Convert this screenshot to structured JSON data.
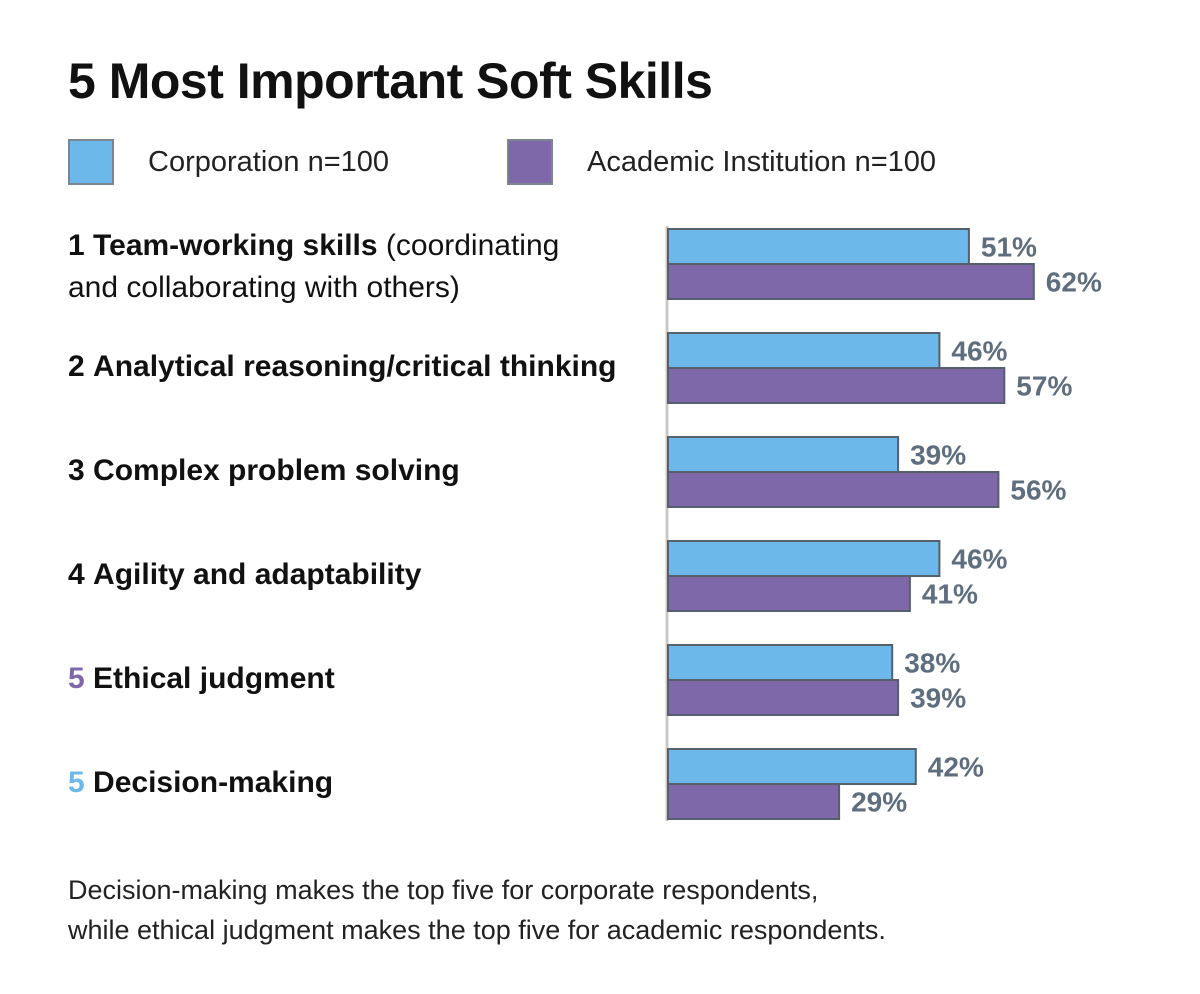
{
  "title": "5 Most Important Soft Skills",
  "colors": {
    "corporation": "#6cb8ea",
    "academic": "#7e68aa",
    "value_label": "#5f6e7e",
    "bar_border": "#56606c",
    "axis": "#c8c8c8",
    "rank_academic": "#7e68aa",
    "rank_corporate": "#6cb8ea"
  },
  "legend": {
    "corporation": "Corporation n=100",
    "academic": "Academic Institution n=100"
  },
  "rows": [
    {
      "rank": "1",
      "name": "Team-working skills",
      "detail": " (coordinating",
      "detail2": "and collaborating with others)"
    },
    {
      "rank": "2",
      "name": "Analytical reasoning/critical thinking"
    },
    {
      "rank": "3",
      "name": "Complex problem solving"
    },
    {
      "rank": "4",
      "name": "Agility and adaptability"
    },
    {
      "rank": "5",
      "name": "Ethical judgment"
    },
    {
      "rank": "5",
      "name": "Decision-making"
    }
  ],
  "chart_data": {
    "type": "bar",
    "orientation": "horizontal",
    "title": "5 Most Important Soft Skills",
    "categories": [
      "Team-working skills (coordinating and collaborating with others)",
      "Analytical reasoning/critical thinking",
      "Complex problem solving",
      "Agility and adaptability",
      "Ethical judgment",
      "Decision-making"
    ],
    "series": [
      {
        "name": "Corporation n=100",
        "values": [
          51,
          46,
          39,
          46,
          38,
          42
        ],
        "labels": [
          "51%",
          "46%",
          "39%",
          "46%",
          "38%",
          "42%"
        ]
      },
      {
        "name": "Academic Institution n=100",
        "values": [
          62,
          57,
          56,
          41,
          39,
          29
        ],
        "labels": [
          "62%",
          "57%",
          "56%",
          "41%",
          "39%",
          "29%"
        ]
      }
    ],
    "xlim": [
      0,
      100
    ],
    "unit": "%",
    "grid": false,
    "legend": "top-left"
  },
  "footnote": {
    "line1": "Decision-making makes the top five for corporate respondents,",
    "line2": "while ethical judgment makes the top five for academic respondents."
  }
}
